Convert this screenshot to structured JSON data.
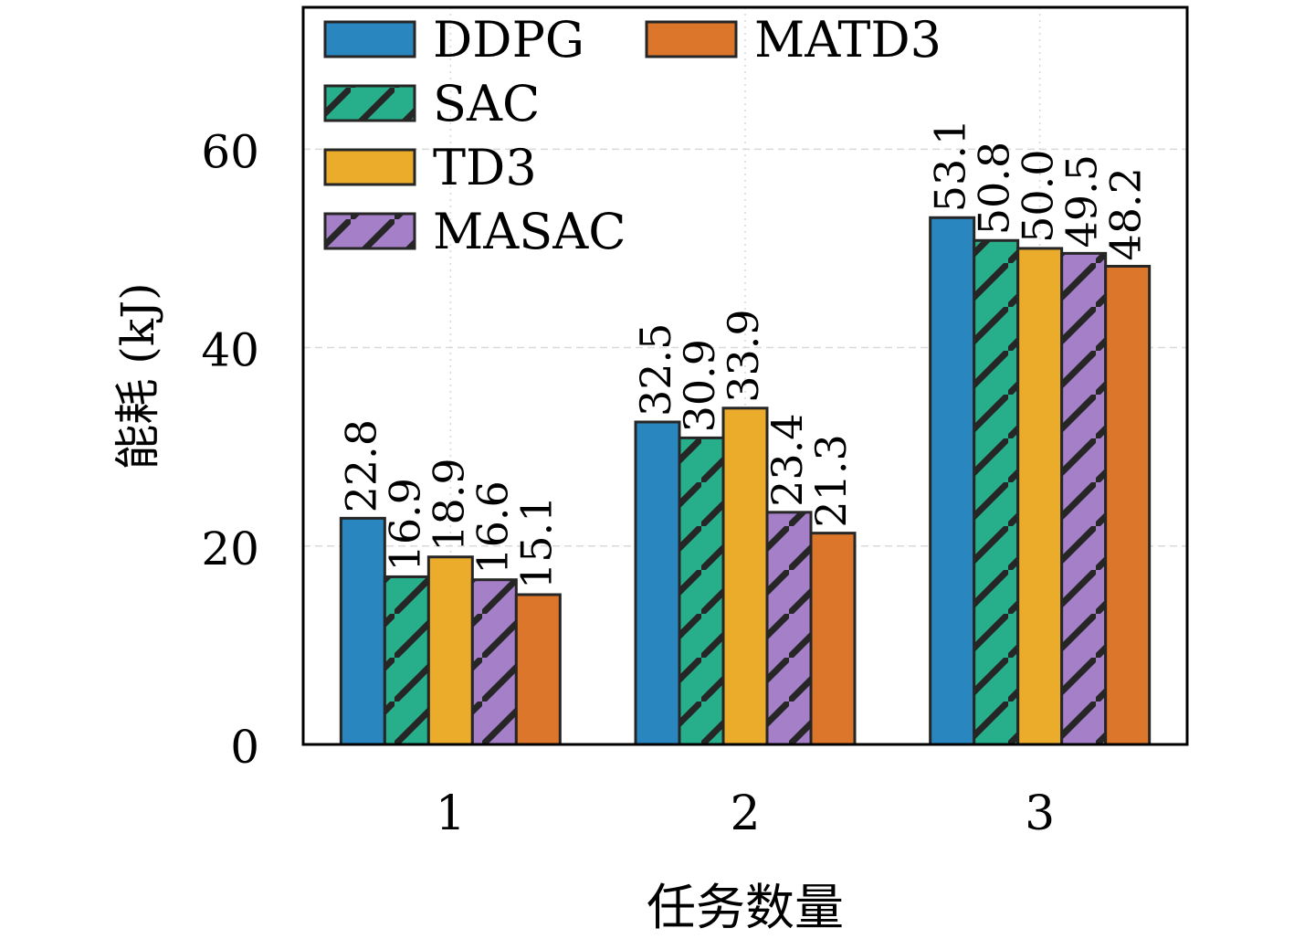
{
  "chart_data": {
    "type": "bar",
    "title": "",
    "xlabel": "任务数量",
    "ylabel": "能耗 (kJ)",
    "categories": [
      "1",
      "2",
      "3"
    ],
    "ylim": [
      0,
      74.3
    ],
    "yticks": [
      0,
      20,
      40,
      60
    ],
    "ytick_labels": [
      "0",
      "20",
      "40",
      "60"
    ],
    "grid": true,
    "legend_position": "top-left",
    "legend_columns": 2,
    "series": [
      {
        "name": "DDPG",
        "color": "#2a86bf",
        "hatch": false,
        "values": [
          22.8,
          32.5,
          53.1
        ]
      },
      {
        "name": "SAC",
        "color": "#27ae8a",
        "hatch": true,
        "values": [
          16.9,
          30.9,
          50.8
        ]
      },
      {
        "name": "TD3",
        "color": "#ebab2b",
        "hatch": false,
        "values": [
          18.9,
          33.9,
          50.0
        ]
      },
      {
        "name": "MASAC",
        "color": "#a57fc7",
        "hatch": true,
        "values": [
          16.6,
          23.4,
          49.5
        ]
      },
      {
        "name": "MATD3",
        "color": "#db762a",
        "hatch": false,
        "values": [
          15.1,
          21.3,
          48.2
        ]
      }
    ],
    "data_labels": [
      [
        "22.8",
        "32.5",
        "53.1"
      ],
      [
        "16.9",
        "30.9",
        "50.8"
      ],
      [
        "18.9",
        "33.9",
        "50.0"
      ],
      [
        "16.6",
        "23.4",
        "49.5"
      ],
      [
        "15.1",
        "21.3",
        "48.2"
      ]
    ]
  }
}
